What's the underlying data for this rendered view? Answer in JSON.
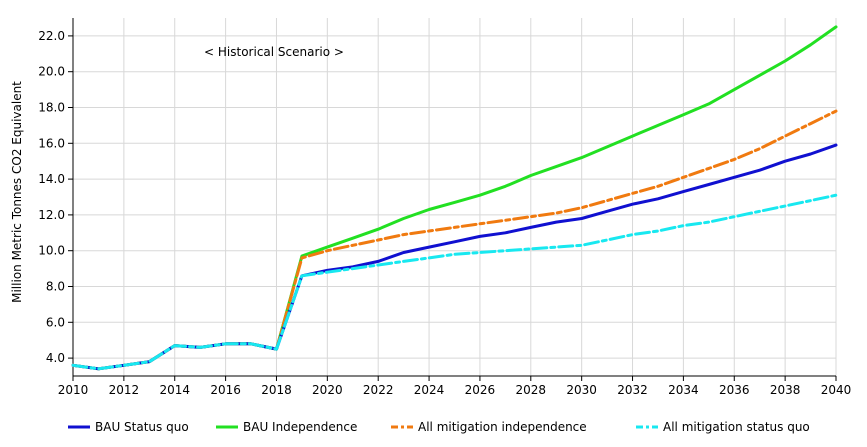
{
  "chart_data": {
    "type": "line",
    "title": "",
    "xlabel": "",
    "ylabel": "Million Metric Tonnes CO2 Equivalent",
    "annotation": "< Historical Scenario >",
    "xlim": [
      2010,
      2040
    ],
    "ylim": [
      3.0,
      23.0
    ],
    "x_ticks": [
      "2010",
      "2012",
      "2014",
      "2016",
      "2018",
      "2020",
      "2022",
      "2024",
      "2026",
      "2028",
      "2030",
      "2032",
      "2034",
      "2036",
      "2038",
      "2040"
    ],
    "y_ticks": [
      "4.0",
      "6.0",
      "8.0",
      "10.0",
      "12.0",
      "14.0",
      "16.0",
      "18.0",
      "20.0",
      "22.0"
    ],
    "grid": true,
    "legend_position": "bottom",
    "series": [
      {
        "name": "BAU Status quo",
        "color": "#1010d0",
        "style": "solid",
        "x": [
          2010,
          2011,
          2012,
          2013,
          2014,
          2015,
          2016,
          2017,
          2018,
          2019,
          2020,
          2021,
          2022,
          2023,
          2024,
          2025,
          2026,
          2027,
          2028,
          2029,
          2030,
          2031,
          2032,
          2033,
          2034,
          2035,
          2036,
          2037,
          2038,
          2039,
          2040
        ],
        "y": [
          3.6,
          3.4,
          3.6,
          3.8,
          4.7,
          4.6,
          4.8,
          4.8,
          4.5,
          8.6,
          8.9,
          9.1,
          9.4,
          9.9,
          10.2,
          10.5,
          10.8,
          11.0,
          11.3,
          11.6,
          11.8,
          12.2,
          12.6,
          12.9,
          13.3,
          13.7,
          14.1,
          14.5,
          15.0,
          15.4,
          15.9
        ]
      },
      {
        "name": "BAU Independence",
        "color": "#22e022",
        "style": "solid",
        "x": [
          2010,
          2011,
          2012,
          2013,
          2014,
          2015,
          2016,
          2017,
          2018,
          2019,
          2020,
          2021,
          2022,
          2023,
          2024,
          2025,
          2026,
          2027,
          2028,
          2029,
          2030,
          2031,
          2032,
          2033,
          2034,
          2035,
          2036,
          2037,
          2038,
          2039,
          2040
        ],
        "y": [
          3.6,
          3.4,
          3.6,
          3.8,
          4.7,
          4.6,
          4.8,
          4.8,
          4.5,
          9.7,
          10.2,
          10.7,
          11.2,
          11.8,
          12.3,
          12.7,
          13.1,
          13.6,
          14.2,
          14.7,
          15.2,
          15.8,
          16.4,
          17.0,
          17.6,
          18.2,
          19.0,
          19.8,
          20.6,
          21.5,
          22.5
        ]
      },
      {
        "name": "All mitigation independence",
        "color": "#f07a10",
        "style": "dashdot",
        "x": [
          2010,
          2011,
          2012,
          2013,
          2014,
          2015,
          2016,
          2017,
          2018,
          2019,
          2020,
          2021,
          2022,
          2023,
          2024,
          2025,
          2026,
          2027,
          2028,
          2029,
          2030,
          2031,
          2032,
          2033,
          2034,
          2035,
          2036,
          2037,
          2038,
          2039,
          2040
        ],
        "y": [
          3.6,
          3.4,
          3.6,
          3.8,
          4.7,
          4.6,
          4.8,
          4.8,
          4.5,
          9.6,
          10.0,
          10.3,
          10.6,
          10.9,
          11.1,
          11.3,
          11.5,
          11.7,
          11.9,
          12.1,
          12.4,
          12.8,
          13.2,
          13.6,
          14.1,
          14.6,
          15.1,
          15.7,
          16.4,
          17.1,
          17.8
        ]
      },
      {
        "name": "All mitigation status quo",
        "color": "#18e8f0",
        "style": "dashdot",
        "x": [
          2010,
          2011,
          2012,
          2013,
          2014,
          2015,
          2016,
          2017,
          2018,
          2019,
          2020,
          2021,
          2022,
          2023,
          2024,
          2025,
          2026,
          2027,
          2028,
          2029,
          2030,
          2031,
          2032,
          2033,
          2034,
          2035,
          2036,
          2037,
          2038,
          2039,
          2040
        ],
        "y": [
          3.6,
          3.4,
          3.6,
          3.8,
          4.7,
          4.6,
          4.8,
          4.8,
          4.5,
          8.6,
          8.8,
          9.0,
          9.2,
          9.4,
          9.6,
          9.8,
          9.9,
          10.0,
          10.1,
          10.2,
          10.3,
          10.6,
          10.9,
          11.1,
          11.4,
          11.6,
          11.9,
          12.2,
          12.5,
          12.8,
          13.1
        ]
      }
    ]
  }
}
